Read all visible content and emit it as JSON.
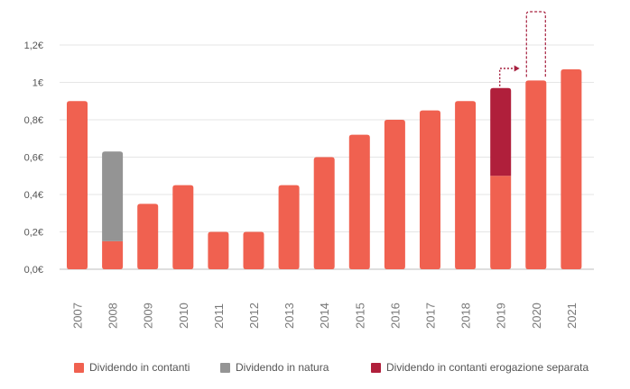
{
  "chart_data": {
    "type": "bar",
    "stacked": true,
    "title": "",
    "xlabel": "",
    "ylabel": "",
    "ylim": [
      0,
      1.2
    ],
    "y_ticks": [
      "0,0€",
      "0,2€",
      "0,4€",
      "0,6€",
      "0,8€",
      "1€",
      "1,2€"
    ],
    "categories": [
      "2007",
      "2008",
      "2009",
      "2010",
      "2011",
      "2012",
      "2013",
      "2014",
      "2015",
      "2016",
      "2017",
      "2018",
      "2019",
      "2020",
      "2021"
    ],
    "series": [
      {
        "name": "Dividendo in contanti",
        "color": "#f06150",
        "values": [
          0.9,
          0.15,
          0.35,
          0.45,
          0.2,
          0.2,
          0.45,
          0.6,
          0.72,
          0.8,
          0.85,
          0.9,
          0.5,
          1.01,
          1.07
        ]
      },
      {
        "name": "Dividendo in natura",
        "color": "#949494",
        "values": [
          0,
          0.48,
          0,
          0,
          0,
          0,
          0,
          0,
          0,
          0,
          0,
          0,
          0,
          0,
          0
        ]
      },
      {
        "name": "Dividendo in contanti erogazione separata",
        "color": "#b01f3b",
        "values": [
          0,
          0,
          0,
          0,
          0,
          0,
          0,
          0,
          0,
          0,
          0,
          0,
          0.47,
          0,
          0
        ]
      }
    ],
    "annotations": [
      {
        "type": "deferred-payment-arrow",
        "from": "2019",
        "to": "2020",
        "color": "#a6203f"
      }
    ],
    "legend_position": "bottom"
  }
}
